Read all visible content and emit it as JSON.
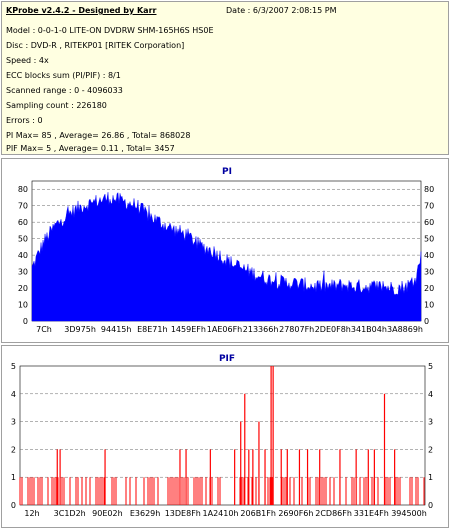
{
  "header": {
    "title": "KProbe v2.4.2 - Designed by Karr",
    "date": "Date : 6/3/2007 2:08:15 PM",
    "lines": [
      "Model : 0-0-1-0 LITE-ON DVDRW SHM-165H6S HS0E",
      "Disc : DVD-R , RITEKP01 [RITEK Corporation]",
      "Speed : 4x",
      "ECC blocks sum (PI/PIF) : 8/1",
      "Scanned range : 0 - 4096033",
      "Sampling count : 226180",
      "Errors : 0",
      "PI Max= 85 , Average= 26.86 , Total= 868028",
      "PIF Max= 5 , Average= 0.11 , Total= 3457"
    ]
  },
  "colors": {
    "pi_fill": "#0000ff",
    "pif_bar": "#ff0000",
    "title": "#0000a0",
    "info_bg": "#ffffe1"
  },
  "chart_data": [
    {
      "type": "area",
      "title": "PI",
      "ylim": [
        0,
        85
      ],
      "yticks": [
        0,
        10,
        20,
        30,
        40,
        50,
        60,
        70,
        80
      ],
      "xticks": [
        "7Ch",
        "3D975h",
        "94415h",
        "E8E71h",
        "1459EFh",
        "1AE06Fh",
        "213366h",
        "27807Fh",
        "2DE0F8h",
        "341B04h",
        "3A8869h"
      ],
      "grid": true,
      "profile_x": [
        0,
        0.03,
        0.06,
        0.1,
        0.13,
        0.17,
        0.2,
        0.23,
        0.27,
        0.3,
        0.33,
        0.36,
        0.4,
        0.43,
        0.47,
        0.5,
        0.53,
        0.57,
        0.6,
        0.63,
        0.67,
        0.7,
        0.73,
        0.77,
        0.8,
        0.83,
        0.86,
        0.9,
        0.93,
        0.96,
        0.985,
        1.0
      ],
      "profile_y": [
        32,
        48,
        58,
        66,
        70,
        73,
        75,
        73,
        70,
        64,
        60,
        56,
        52,
        46,
        42,
        37,
        33,
        29,
        26,
        24,
        23,
        22,
        21,
        21,
        22,
        21,
        21,
        21,
        20,
        21,
        24,
        40
      ],
      "peak_max": 85
    },
    {
      "type": "bar",
      "title": "PIF",
      "ylim": [
        0,
        5
      ],
      "yticks": [
        0,
        1,
        2,
        3,
        4,
        5
      ],
      "xticks": [
        "12h",
        "3C1D2h",
        "90E02h",
        "E3629h",
        "13DE8Fh",
        "1A2410h",
        "206B1Fh",
        "2690F6h",
        "2CD86Fh",
        "331E4Fh",
        "394500h"
      ],
      "grid": true,
      "spikes": [
        {
          "x": 0.092,
          "y": 2
        },
        {
          "x": 0.099,
          "y": 2
        },
        {
          "x": 0.21,
          "y": 2
        },
        {
          "x": 0.395,
          "y": 2
        },
        {
          "x": 0.41,
          "y": 2
        },
        {
          "x": 0.47,
          "y": 2
        },
        {
          "x": 0.53,
          "y": 2
        },
        {
          "x": 0.545,
          "y": 3
        },
        {
          "x": 0.555,
          "y": 4
        },
        {
          "x": 0.565,
          "y": 2
        },
        {
          "x": 0.575,
          "y": 2
        },
        {
          "x": 0.59,
          "y": 3
        },
        {
          "x": 0.605,
          "y": 2
        },
        {
          "x": 0.62,
          "y": 5
        },
        {
          "x": 0.625,
          "y": 5
        },
        {
          "x": 0.645,
          "y": 2
        },
        {
          "x": 0.66,
          "y": 2
        },
        {
          "x": 0.69,
          "y": 2
        },
        {
          "x": 0.71,
          "y": 2
        },
        {
          "x": 0.74,
          "y": 2
        },
        {
          "x": 0.79,
          "y": 2
        },
        {
          "x": 0.83,
          "y": 2
        },
        {
          "x": 0.86,
          "y": 2
        },
        {
          "x": 0.875,
          "y": 2
        },
        {
          "x": 0.9,
          "y": 4
        },
        {
          "x": 0.925,
          "y": 2
        }
      ],
      "baseline_density": 0.55,
      "baseline_value": 1
    }
  ]
}
